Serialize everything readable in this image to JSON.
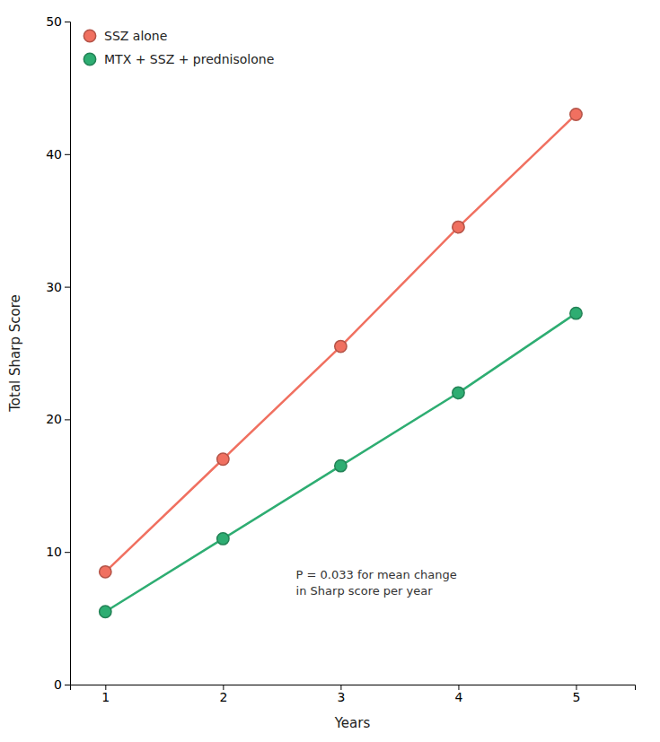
{
  "chart_data": {
    "type": "line",
    "x": [
      1,
      2,
      3,
      4,
      5
    ],
    "series": [
      {
        "name": "SSZ alone",
        "color": "#F07060",
        "marker": "circle",
        "values": [
          8.5,
          17.0,
          25.5,
          34.5,
          43.0
        ]
      },
      {
        "name": "MTX + SSZ + prednisolone",
        "color": "#2EAD72",
        "marker": "circle",
        "values": [
          5.5,
          11.0,
          16.5,
          22.0,
          28.0
        ]
      }
    ],
    "x_label": "Years",
    "y_label": "Total Sharp Score",
    "xlim": [
      0.7,
      5.5
    ],
    "ylim": [
      0,
      50
    ],
    "xticks": [
      1,
      2,
      3,
      4,
      5
    ],
    "yticks": [
      0,
      10,
      20,
      30,
      40,
      50
    ],
    "annotation": [
      "P = 0.033 for mean change",
      "in Sharp score per year"
    ],
    "legend": "upper left",
    "grid": false
  }
}
